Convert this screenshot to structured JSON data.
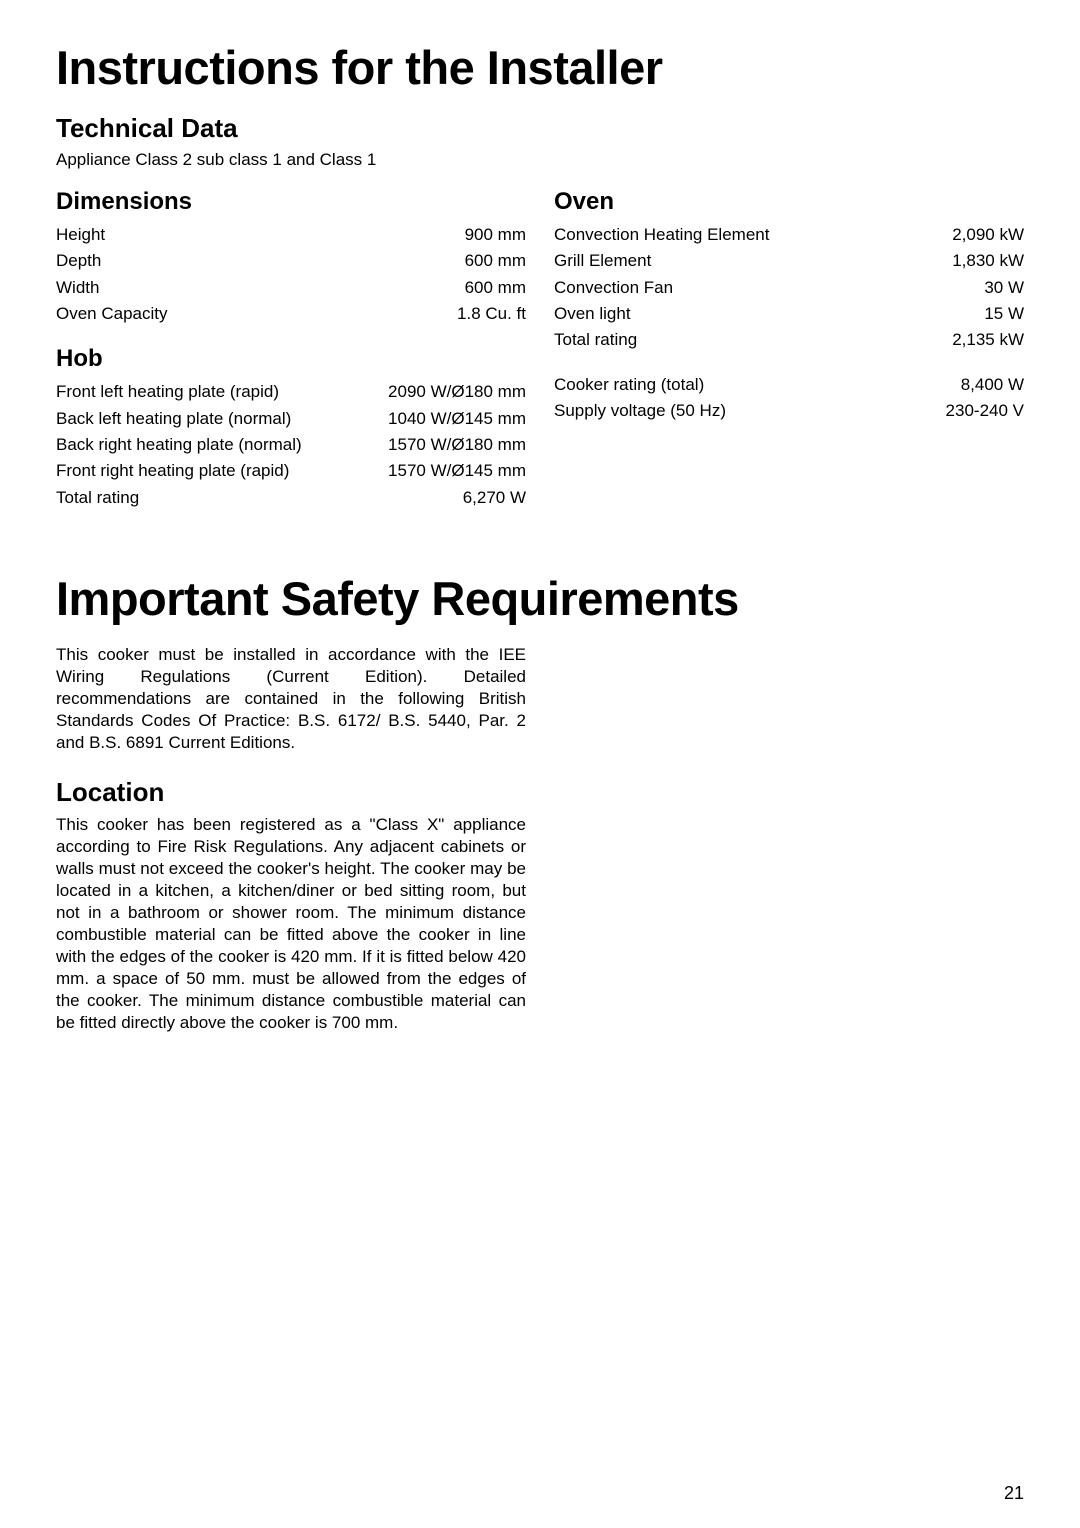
{
  "titles": {
    "main1": "Instructions for the Installer",
    "main2": "Important Safety Requirements"
  },
  "technical_data": {
    "heading": "Technical Data",
    "subtitle": "Appliance Class 2 sub class 1 and Class 1"
  },
  "dimensions": {
    "heading": "Dimensions",
    "rows": [
      {
        "label": "Height",
        "value": "900 mm"
      },
      {
        "label": "Depth",
        "value": "600 mm"
      },
      {
        "label": "Width",
        "value": "600 mm"
      },
      {
        "label": "Oven Capacity",
        "value": "1.8 Cu. ft"
      }
    ]
  },
  "hob": {
    "heading": "Hob",
    "rows": [
      {
        "label": "Front left heating plate (rapid)",
        "value": "2090 W/Ø180 mm"
      },
      {
        "label": "Back left heating plate (normal)",
        "value": "1040 W/Ø145 mm"
      },
      {
        "label": "Back right heating plate (normal)",
        "value": "1570 W/Ø180 mm"
      },
      {
        "label": "Front right heating plate (rapid)",
        "value": "1570 W/Ø145 mm"
      },
      {
        "label": "Total rating",
        "value": "6,270  W"
      }
    ]
  },
  "oven": {
    "heading": "Oven",
    "rows": [
      {
        "label": "Convection Heating Element",
        "value": "2,090 kW"
      },
      {
        "label": "Grill Element",
        "value": "1,830 kW"
      },
      {
        "label": "Convection Fan",
        "value": "30 W"
      },
      {
        "label": "Oven light",
        "value": "15 W"
      },
      {
        "label": "Total rating",
        "value": "2,135 kW"
      }
    ],
    "extra": [
      {
        "label": "Cooker rating (total)",
        "value": "8,400 W"
      },
      {
        "label": "Supply voltage (50 Hz)",
        "value": "230-240 V"
      }
    ]
  },
  "safety": {
    "intro": "This cooker must be installed in accordance with the IEE Wiring Regulations (Current Edition).\nDetailed recommendations are contained in the following British Standards Codes Of Practice: B.S. 6172/ B.S. 5440, Par. 2 and B.S. 6891 Current Editions."
  },
  "location": {
    "heading": "Location",
    "body": "This cooker has been registered as a \"Class X\" appliance according to Fire Risk Regulations.\nAny adjacent cabinets or walls must not exceed the cooker's height.\nThe cooker may be located in a kitchen, a kitchen/diner or bed sitting room, but not in a bathroom or shower room.\nThe minimum distance combustible material can be fitted above the cooker in line with the edges of the cooker is 420 mm. If it is fitted below 420 mm. a space of 50 mm. must be allowed from the edges of the cooker.\nThe minimum distance combustible material can be fitted directly above the cooker is 700 mm."
  },
  "page_number": "21"
}
